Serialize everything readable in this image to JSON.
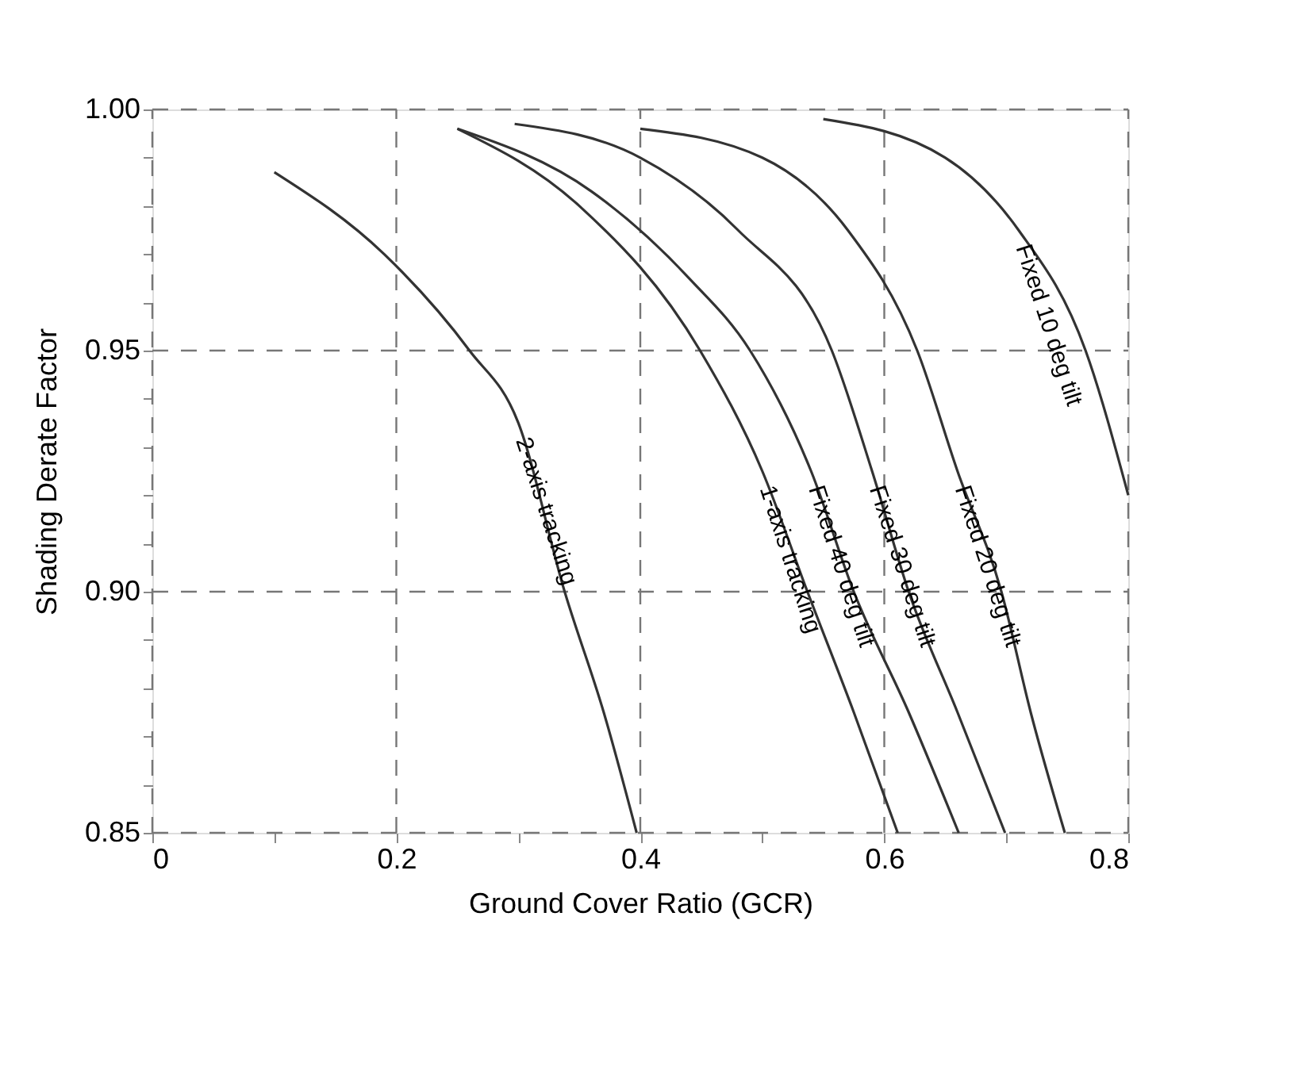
{
  "chart_data": {
    "type": "line",
    "xlabel": "Ground Cover Ratio (GCR)",
    "ylabel": "Shading Derate Factor",
    "xlim": [
      0,
      0.8
    ],
    "ylim": [
      0.85,
      1.0
    ],
    "xticks": [
      0,
      {
        "value": 0.1,
        "label": null
      },
      0.2,
      {
        "value": 0.3,
        "label": null
      },
      0.4,
      {
        "value": 0.5,
        "label": null
      },
      0.6,
      {
        "value": 0.7,
        "label": null
      },
      0.8
    ],
    "yticks": [
      {
        "value": 0.85,
        "label": "0.85"
      },
      {
        "value": 0.86,
        "label": null
      },
      {
        "value": 0.87,
        "label": null
      },
      {
        "value": 0.88,
        "label": null
      },
      {
        "value": 0.89,
        "label": null
      },
      {
        "value": 0.9,
        "label": "0.90"
      },
      {
        "value": 0.91,
        "label": null
      },
      {
        "value": 0.92,
        "label": null
      },
      {
        "value": 0.93,
        "label": null
      },
      {
        "value": 0.94,
        "label": null
      },
      {
        "value": 0.95,
        "label": "0.95"
      },
      {
        "value": 0.96,
        "label": null
      },
      {
        "value": 0.97,
        "label": null
      },
      {
        "value": 0.98,
        "label": null
      },
      {
        "value": 0.99,
        "label": null
      },
      {
        "value": 1.0,
        "label": "1.00"
      }
    ],
    "grid": true,
    "legend": false,
    "marker": "none",
    "line_style": "solid",
    "series": [
      {
        "name": "2-axis tracking",
        "color": "#333333",
        "x": [
          0.1,
          0.19,
          0.26,
          0.3,
          0.338,
          0.37,
          0.397
        ],
        "values": [
          0.987,
          0.97,
          0.95,
          0.935,
          0.9,
          0.875,
          0.85
        ]
      },
      {
        "name": "1-axis tracking",
        "color": "#333333",
        "x": [
          0.25,
          0.35,
          0.449,
          0.5,
          0.537,
          0.575,
          0.611
        ],
        "values": [
          0.996,
          0.98,
          0.95,
          0.925,
          0.9,
          0.875,
          0.85
        ]
      },
      {
        "name": "Fixed 40 deg tilt",
        "color": "#333333",
        "x": [
          0.25,
          0.36,
          0.44,
          0.49,
          0.54,
          0.575,
          0.62,
          0.661
        ],
        "values": [
          0.996,
          0.983,
          0.965,
          0.95,
          0.925,
          0.9,
          0.875,
          0.85
        ]
      },
      {
        "name": "Fixed 30 deg tilt",
        "color": "#333333",
        "x": [
          0.297,
          0.4,
          0.48,
          0.557,
          0.59,
          0.62,
          0.66,
          0.699
        ],
        "values": [
          0.997,
          0.99,
          0.975,
          0.95,
          0.925,
          0.9,
          0.875,
          0.85
        ]
      },
      {
        "name": "Fixed 20 deg tilt",
        "color": "#333333",
        "x": [
          0.4,
          0.5,
          0.57,
          0.627,
          0.66,
          0.696,
          0.72,
          0.748
        ],
        "values": [
          0.996,
          0.99,
          0.975,
          0.95,
          0.925,
          0.9,
          0.875,
          0.85
        ]
      },
      {
        "name": "Fixed 10 deg tilt",
        "color": "#333333",
        "x": [
          0.55,
          0.65,
          0.71,
          0.765,
          0.8
        ],
        "values": [
          0.998,
          0.99,
          0.975,
          0.95,
          0.92
        ]
      }
    ]
  }
}
